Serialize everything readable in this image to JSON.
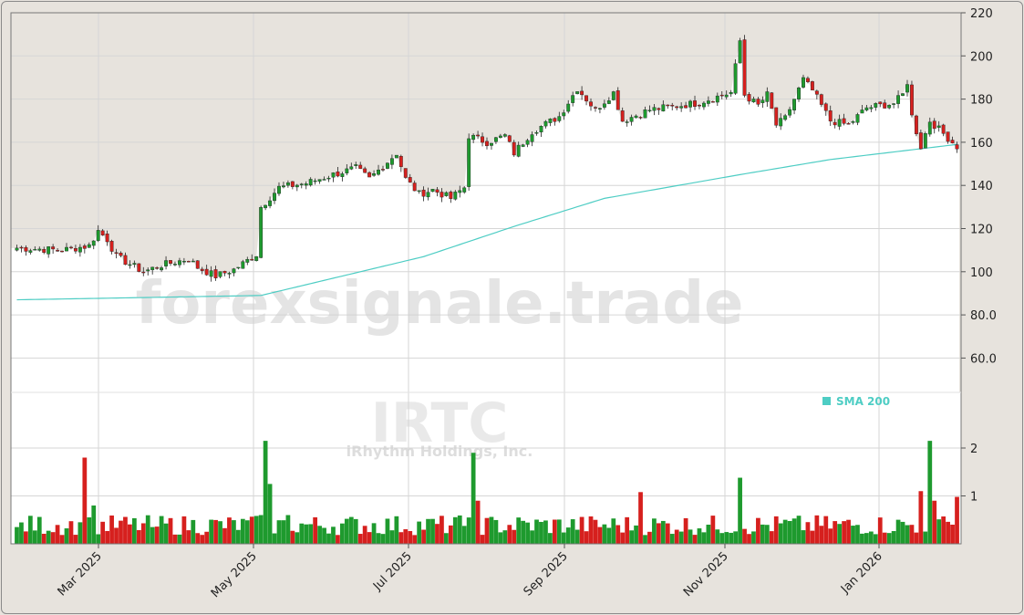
{
  "chart_data": {
    "type": "candlestick",
    "symbol": "IRTC",
    "company": "iRhythm Holdings, Inc.",
    "watermark": "forexsignale.trade",
    "legend": {
      "label": "SMA 200",
      "color": "#4ecdc4",
      "placement": "right-middle"
    },
    "price_axis": {
      "ticks": [
        "220",
        "200",
        "180",
        "160",
        "140",
        "120",
        "100",
        "80.0",
        "60.0"
      ],
      "range": [
        50,
        220
      ]
    },
    "volume_axis": {
      "ticks": [
        "2",
        "1"
      ],
      "range": [
        0,
        2.2
      ],
      "unit": "millions"
    },
    "date_axis": {
      "labels": [
        "Mar 2025",
        "May 2025",
        "Jul 2025",
        "Sep 2025",
        "Nov 2025",
        "Jan 2026"
      ]
    },
    "colors": {
      "up": "#1e9a2e",
      "down": "#d6201e",
      "sma": "#4ecdc4",
      "gridline": "#d6d6d6"
    },
    "price_anchors": [
      [
        0,
        111
      ],
      [
        10,
        110
      ],
      [
        16,
        112
      ],
      [
        18,
        119
      ],
      [
        20,
        115
      ],
      [
        22,
        107
      ],
      [
        28,
        100
      ],
      [
        32,
        103
      ],
      [
        38,
        106
      ],
      [
        40,
        102
      ],
      [
        44,
        98
      ],
      [
        48,
        101
      ],
      [
        53,
        108
      ],
      [
        54,
        130
      ],
      [
        58,
        139
      ],
      [
        64,
        141
      ],
      [
        70,
        145
      ],
      [
        75,
        148
      ],
      [
        78,
        143
      ],
      [
        84,
        155
      ],
      [
        86,
        143
      ],
      [
        89,
        136
      ],
      [
        92,
        138
      ],
      [
        96,
        134
      ],
      [
        99,
        139
      ],
      [
        100,
        163
      ],
      [
        104,
        160
      ],
      [
        108,
        163
      ],
      [
        110,
        155
      ],
      [
        114,
        165
      ],
      [
        120,
        172
      ],
      [
        124,
        185
      ],
      [
        128,
        175
      ],
      [
        132,
        183
      ],
      [
        134,
        170
      ],
      [
        140,
        175
      ],
      [
        150,
        178
      ],
      [
        158,
        183
      ],
      [
        160,
        207
      ],
      [
        161,
        182
      ],
      [
        164,
        177
      ],
      [
        166,
        182
      ],
      [
        168,
        168
      ],
      [
        170,
        171
      ],
      [
        172,
        180
      ],
      [
        174,
        189
      ],
      [
        176,
        184
      ],
      [
        180,
        170
      ],
      [
        184,
        168
      ],
      [
        188,
        176
      ],
      [
        194,
        178
      ],
      [
        196,
        182
      ],
      [
        197,
        188
      ],
      [
        198,
        172
      ],
      [
        200,
        158
      ],
      [
        202,
        170
      ],
      [
        206,
        162
      ],
      [
        208,
        158
      ]
    ],
    "sma_anchors": [
      [
        0,
        87
      ],
      [
        54,
        89
      ],
      [
        70,
        97
      ],
      [
        90,
        107
      ],
      [
        110,
        121
      ],
      [
        130,
        134
      ],
      [
        160,
        145
      ],
      [
        180,
        152
      ],
      [
        208,
        159
      ]
    ],
    "volume_anchors": [
      [
        0,
        0.35
      ],
      [
        14,
        0.45
      ],
      [
        15,
        1.8
      ],
      [
        17,
        0.8
      ],
      [
        30,
        0.35
      ],
      [
        54,
        0.6
      ],
      [
        55,
        2.15
      ],
      [
        56,
        1.25
      ],
      [
        60,
        0.6
      ],
      [
        100,
        0.55
      ],
      [
        101,
        1.9
      ],
      [
        102,
        0.9
      ],
      [
        138,
        1.08
      ],
      [
        160,
        1.38
      ],
      [
        200,
        1.1
      ],
      [
        202,
        2.15
      ],
      [
        203,
        0.9
      ],
      [
        207,
        0.4
      ],
      [
        208,
        0.98
      ]
    ]
  }
}
